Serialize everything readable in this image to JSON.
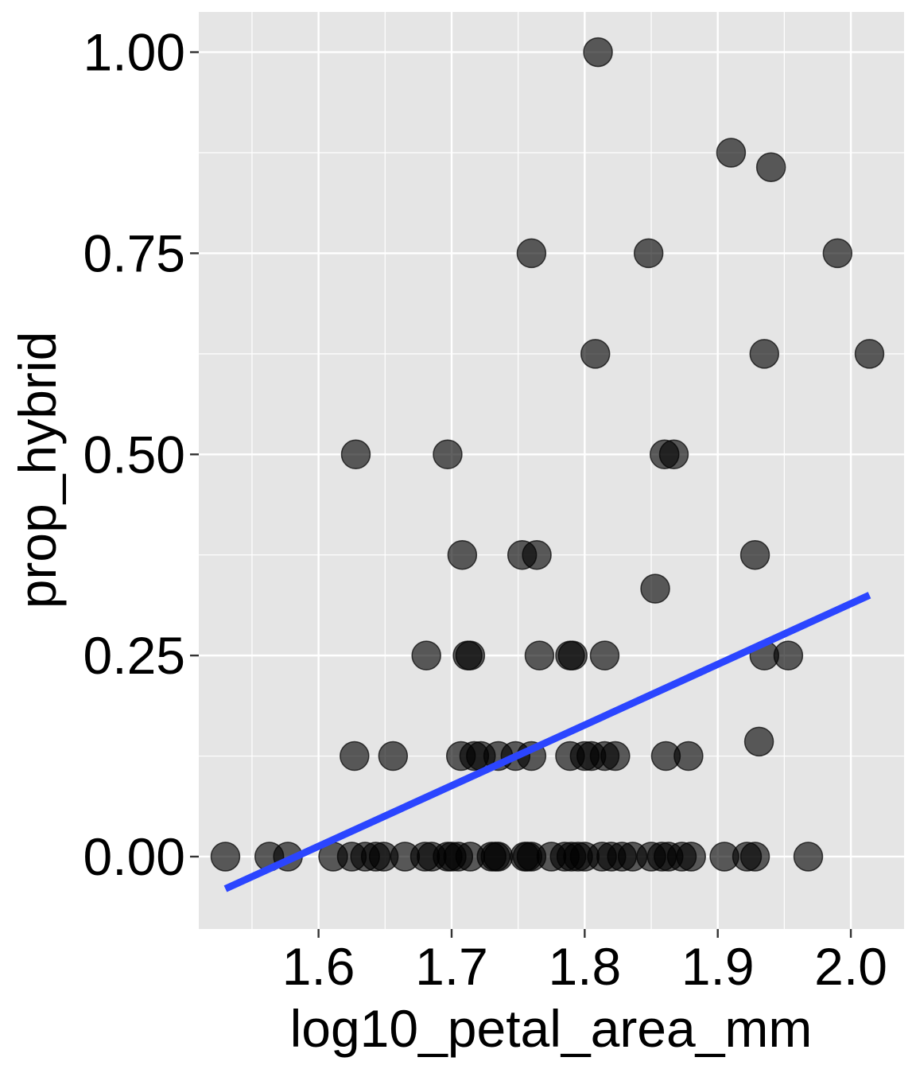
{
  "chart_data": {
    "type": "scatter",
    "title": "",
    "xlabel": "log10_petal_area_mm",
    "ylabel": "prop_hybrid",
    "xlim": [
      1.51,
      2.04
    ],
    "ylim": [
      -0.09,
      1.05
    ],
    "xticks": [
      1.6,
      1.7,
      1.8,
      1.9,
      2.0
    ],
    "xtick_labels": [
      "1.6",
      "1.7",
      "1.8",
      "1.9",
      "2.0"
    ],
    "yticks": [
      0.0,
      0.25,
      0.5,
      0.75,
      1.0
    ],
    "ytick_labels": [
      "0.00",
      "0.25",
      "0.50",
      "0.75",
      "1.00"
    ],
    "grid": true,
    "legend": "none",
    "colors": {
      "panel": "#e5e5e5",
      "grid": "#ffffff",
      "point": "#000000",
      "trend": "#2b45ff"
    },
    "points": {
      "x": [
        1.81,
        1.91,
        1.94,
        1.76,
        1.848,
        1.99,
        1.808,
        1.935,
        2.014,
        1.628,
        1.697,
        1.86,
        1.867,
        1.708,
        1.753,
        1.764,
        1.928,
        1.853,
        1.681,
        1.712,
        1.714,
        1.766,
        1.789,
        1.791,
        1.815,
        1.935,
        1.953,
        1.931,
        1.627,
        1.656,
        1.707,
        1.717,
        1.722,
        1.735,
        1.748,
        1.76,
        1.789,
        1.8,
        1.805,
        1.815,
        1.823,
        1.861,
        1.878,
        1.53,
        1.563,
        1.577,
        1.611,
        1.625,
        1.635,
        1.643,
        1.649,
        1.665,
        1.68,
        1.685,
        1.697,
        1.7,
        1.705,
        1.714,
        1.73,
        1.733,
        1.735,
        1.755,
        1.757,
        1.76,
        1.775,
        1.785,
        1.79,
        1.795,
        1.8,
        1.813,
        1.82,
        1.828,
        1.836,
        1.85,
        1.858,
        1.863,
        1.873,
        1.88,
        1.905,
        1.922,
        1.928,
        1.968
      ],
      "y": [
        1.0,
        0.875,
        0.857,
        0.75,
        0.75,
        0.75,
        0.625,
        0.625,
        0.625,
        0.5,
        0.5,
        0.5,
        0.5,
        0.375,
        0.375,
        0.375,
        0.375,
        0.333,
        0.25,
        0.25,
        0.25,
        0.25,
        0.25,
        0.25,
        0.25,
        0.25,
        0.25,
        0.143,
        0.125,
        0.125,
        0.125,
        0.125,
        0.125,
        0.125,
        0.125,
        0.125,
        0.125,
        0.125,
        0.125,
        0.125,
        0.125,
        0.125,
        0.125,
        0,
        0,
        0,
        0,
        0,
        0,
        0,
        0,
        0,
        0,
        0,
        0,
        0,
        0,
        0,
        0,
        0,
        0,
        0,
        0,
        0,
        0,
        0,
        0,
        0,
        0,
        0,
        0,
        0,
        0,
        0,
        0,
        0,
        0,
        0,
        0,
        0,
        0,
        0
      ]
    },
    "trend_line": {
      "x": [
        1.53,
        2.014
      ],
      "y": [
        -0.04,
        0.325
      ]
    }
  }
}
